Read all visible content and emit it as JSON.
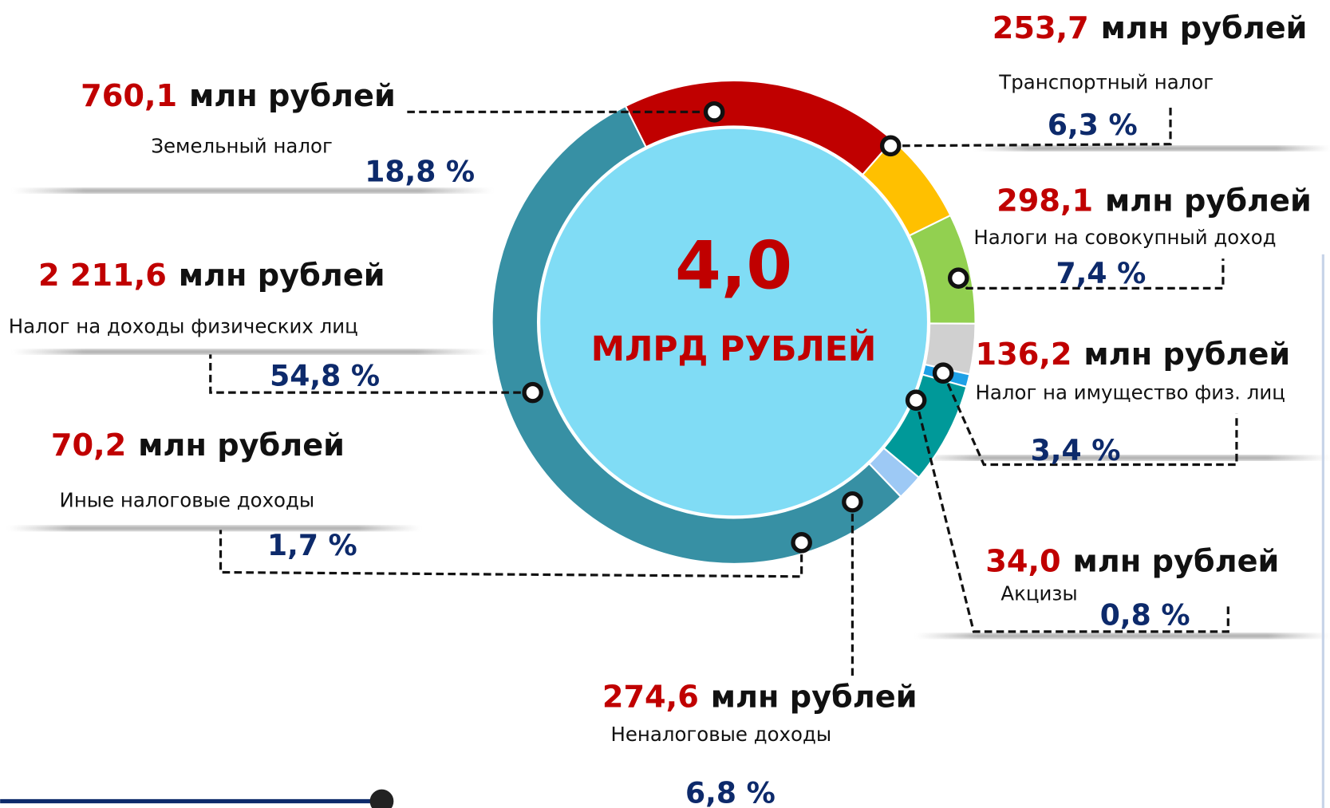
{
  "chart_data": {
    "type": "donut",
    "center_value": "4,0",
    "center_label": "МЛРД РУБЛЕЙ",
    "unit_label": "млн рублей",
    "categories": [
      "Земельный налог",
      "Транспортный налог",
      "Налоги на совокупный доход",
      "Налог на имущество физ. лиц",
      "Акцизы",
      "Неналоговые доходы",
      "Иные налоговые доходы",
      "Налог на доходы физических лиц"
    ],
    "values": [
      760.1,
      253.7,
      298.1,
      136.2,
      34.0,
      274.6,
      70.2,
      2211.6
    ],
    "value_labels": [
      "760,1",
      "253,7",
      "298,1",
      "136,2",
      "34,0",
      "274,6",
      "70,2",
      "2 211,6"
    ],
    "percents": [
      18.8,
      6.3,
      7.4,
      3.4,
      0.8,
      6.8,
      1.7,
      54.8
    ],
    "percent_labels": [
      "18,8 %",
      "6,3 %",
      "7,4 %",
      "3,4 %",
      "0,8 %",
      "6,8 %",
      "1,7 %",
      "54,8 %"
    ],
    "colors": [
      "#c00000",
      "#ffc000",
      "#92d050",
      "#d0d0d0",
      "#1ea0e6",
      "#009999",
      "#9dc9f5",
      "#3790a4"
    ]
  }
}
